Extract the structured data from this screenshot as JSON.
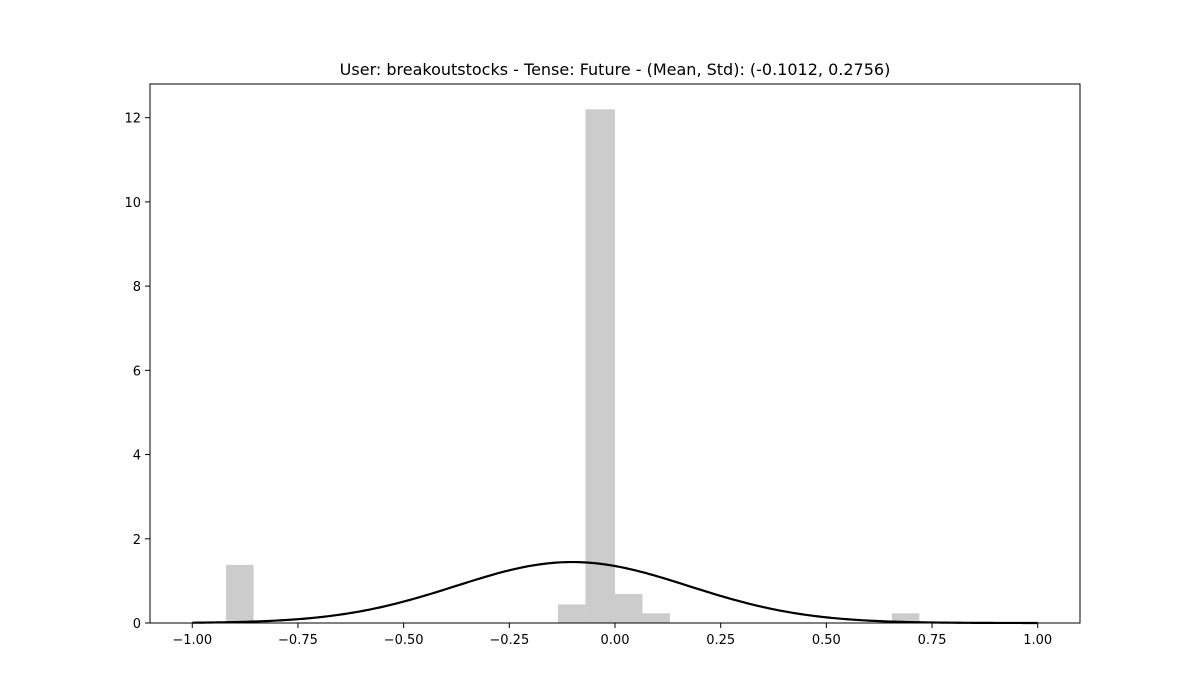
{
  "chart_data": {
    "type": "bar",
    "title": "User: breakoutstocks - Tense: Future - (Mean, Std): (-0.1012, 0.2756)",
    "xlabel": "",
    "ylabel": "",
    "xlim": [
      -1.1,
      1.1
    ],
    "ylim": [
      0,
      12.8
    ],
    "xticks": [
      -1.0,
      -0.75,
      -0.5,
      -0.25,
      0.0,
      0.25,
      0.5,
      0.75,
      1.0
    ],
    "xtick_labels": [
      "−1.00",
      "−0.75",
      "−0.50",
      "−0.25",
      "0.00",
      "0.25",
      "0.50",
      "0.75",
      "1.00"
    ],
    "yticks": [
      0,
      2,
      4,
      6,
      8,
      10,
      12
    ],
    "ytick_labels": [
      "0",
      "2",
      "4",
      "6",
      "8",
      "10",
      "12"
    ],
    "grid": false,
    "histogram": {
      "color": "#cccccc",
      "bins": [
        {
          "x0": -0.92,
          "x1": -0.855,
          "value": 1.38
        },
        {
          "x0": -0.135,
          "x1": -0.07,
          "value": 0.44
        },
        {
          "x0": -0.07,
          "x1": 0.0,
          "value": 12.2
        },
        {
          "x0": 0.0,
          "x1": 0.065,
          "value": 0.69
        },
        {
          "x0": 0.065,
          "x1": 0.13,
          "value": 0.23
        },
        {
          "x0": 0.655,
          "x1": 0.72,
          "value": 0.23
        }
      ]
    },
    "curve": {
      "type": "normal-pdf",
      "mean": -0.1012,
      "std": 0.2756,
      "x_range": [
        -1.0,
        1.0
      ],
      "color": "#000000"
    }
  }
}
